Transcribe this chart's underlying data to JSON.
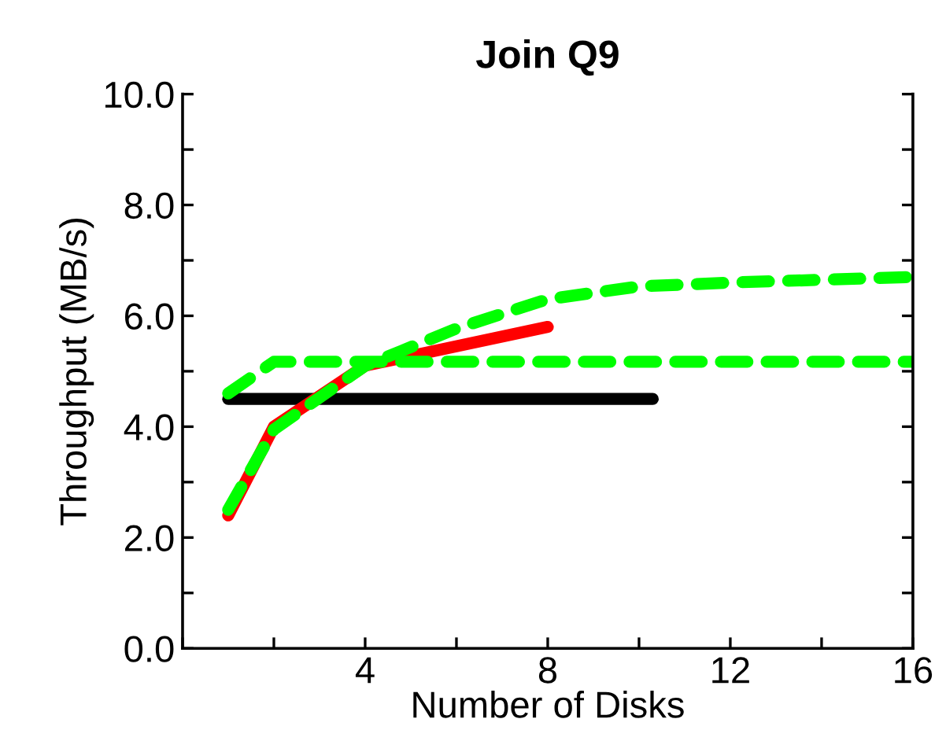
{
  "chart_data": {
    "type": "line",
    "title": "Join Q9",
    "xlabel": "Number of Disks",
    "ylabel": "Throughput (MB/s)",
    "xlim": [
      0,
      16
    ],
    "xticks": [
      {
        "value": 0,
        "label": null
      },
      {
        "value": 2,
        "label": null
      },
      4,
      {
        "value": 6,
        "label": null
      },
      8,
      {
        "value": 10,
        "label": null
      },
      12,
      {
        "value": 14,
        "label": null
      },
      16
    ],
    "ylim": [
      0,
      10
    ],
    "yticks": [
      {
        "value": 0,
        "label": "0.0"
      },
      {
        "value": 1,
        "label": null
      },
      {
        "value": 2,
        "label": "2.0"
      },
      {
        "value": 3,
        "label": null
      },
      {
        "value": 4,
        "label": "4.0"
      },
      {
        "value": 5,
        "label": null
      },
      {
        "value": 6,
        "label": "6.0"
      },
      {
        "value": 7,
        "label": null
      },
      {
        "value": 8,
        "label": "8.0"
      },
      {
        "value": 9,
        "label": null
      },
      {
        "value": 10,
        "label": "10.0"
      }
    ],
    "grid": false,
    "legend": false,
    "series": [
      {
        "color": "#000000",
        "line_style": "solid",
        "x": [
          1,
          2,
          4,
          8,
          10.3
        ],
        "values": [
          4.5,
          4.5,
          4.5,
          4.5,
          4.5
        ]
      },
      {
        "color": "#ff0000",
        "line_style": "solid",
        "x": [
          1,
          2,
          4,
          8
        ],
        "values": [
          2.4,
          4.0,
          5.1,
          5.8
        ]
      },
      {
        "color": "#00ff00",
        "line_style": "dashed",
        "x": [
          1,
          2,
          4,
          8,
          12,
          16
        ],
        "values": [
          4.6,
          5.17,
          5.17,
          5.17,
          5.17,
          5.17
        ]
      },
      {
        "color": "#00ff00",
        "line_style": "dashed",
        "x": [
          1,
          2,
          4,
          6,
          8,
          10,
          12,
          16
        ],
        "values": [
          2.5,
          3.95,
          5.1,
          5.77,
          6.3,
          6.53,
          6.6,
          6.7
        ]
      }
    ]
  }
}
